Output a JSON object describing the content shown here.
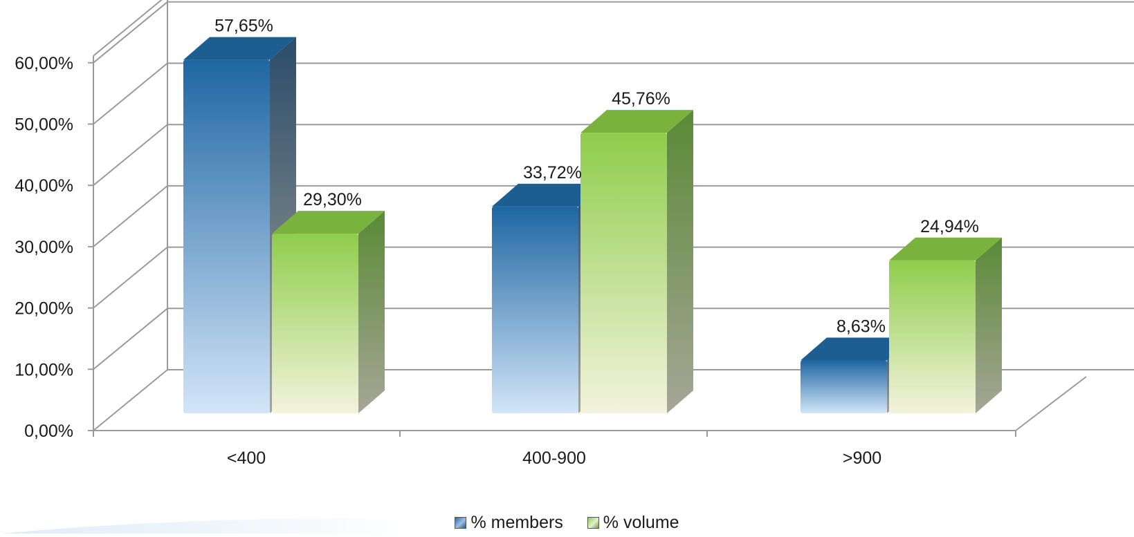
{
  "chart_data": {
    "type": "bar",
    "style": "3d-clustered-column",
    "categories": [
      "<400",
      "400-900",
      ">900"
    ],
    "series": [
      {
        "name": "% members",
        "values": [
          57.65,
          33.72,
          8.63
        ],
        "labels": [
          "57,65%",
          "33,72%",
          "8,63%"
        ],
        "colors": {
          "top": "#1b5e8f",
          "side": "#2b4c6b",
          "light": "#d2e5f8",
          "dark": "#1f66a2"
        }
      },
      {
        "name": "% volume",
        "values": [
          29.3,
          45.76,
          24.94
        ],
        "labels": [
          "29,30%",
          "45,76%",
          "24,94%"
        ],
        "colors": {
          "top": "#79b33e",
          "side": "#5a8a36",
          "light": "#f3f3dd",
          "dark": "#8fcd4c"
        }
      }
    ],
    "ylim": [
      0,
      60
    ],
    "y_ticks": [
      0,
      10,
      20,
      30,
      40,
      50,
      60
    ],
    "y_tick_labels": [
      "0,00%",
      "10,00%",
      "20,00%",
      "30,00%",
      "40,00%",
      "50,00%",
      "60,00%"
    ],
    "grid": true,
    "legend_position": "bottom",
    "title": "",
    "xlabel": "",
    "ylabel": ""
  }
}
